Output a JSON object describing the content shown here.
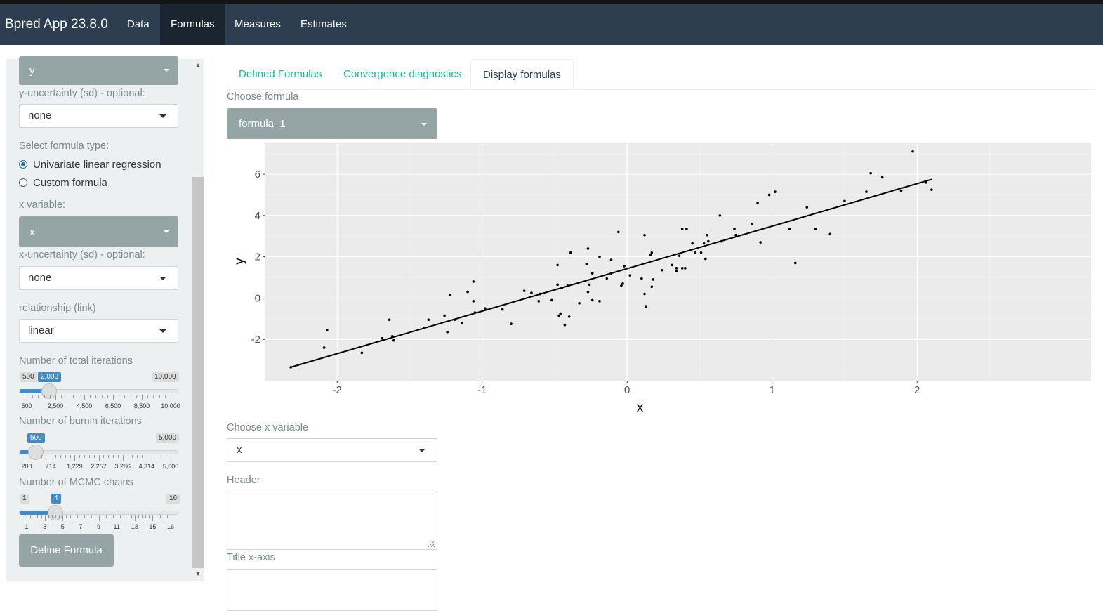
{
  "app": {
    "title": "Bpred App 23.8.0"
  },
  "nav": {
    "items": [
      "Data",
      "Formulas",
      "Measures",
      "Estimates"
    ],
    "active": "Formulas"
  },
  "sidebar": {
    "y_variable": {
      "value": "y"
    },
    "y_uncertainty": {
      "label": "y-uncertainty (sd) - optional:",
      "value": "none"
    },
    "formula_type": {
      "label": "Select formula type:",
      "options": [
        "Univariate linear regression",
        "Custom formula"
      ],
      "selected": "Univariate linear regression"
    },
    "x_variable": {
      "label": "x variable:",
      "value": "x"
    },
    "x_uncertainty": {
      "label": "x-uncertainty (sd) - optional:",
      "value": "none"
    },
    "relationship": {
      "label": "relationship (link)",
      "value": "linear"
    },
    "total_iterations": {
      "label": "Number of total iterations",
      "min_label": "500",
      "max_label": "10,000",
      "value_label": "2,000",
      "min": 500,
      "max": 10000,
      "value": 2000,
      "tick_labels": [
        "500",
        "2,500",
        "4,500",
        "6,500",
        "8,500",
        "10,000"
      ]
    },
    "burnin_iterations": {
      "label": "Number of burnin iterations",
      "max_label": "5,000",
      "value_label": "500",
      "min": 200,
      "max": 5000,
      "value": 500,
      "tick_labels": [
        "200",
        "714",
        "1,229",
        "2,257",
        "3,286",
        "4,314",
        "5,000"
      ]
    },
    "mcmc_chains": {
      "label": "Number of MCMC chains",
      "min_label": "1",
      "max_label": "16",
      "value_label": "4",
      "min": 1,
      "max": 16,
      "value": 4,
      "tick_labels": [
        "1",
        "3",
        "5",
        "7",
        "9",
        "11",
        "13",
        "15",
        "16"
      ]
    },
    "define_button": "Define Formula"
  },
  "tabs": {
    "items": [
      "Defined Formulas",
      "Convergence diagnostics",
      "Display formulas"
    ],
    "active": "Display formulas"
  },
  "main": {
    "choose_formula": {
      "label": "Choose formula",
      "value": "formula_1"
    },
    "choose_x": {
      "label": "Choose x variable",
      "value": "x"
    },
    "header": {
      "label": "Header",
      "value": ""
    },
    "title_x": {
      "label": "Title x-axis",
      "value": ""
    }
  },
  "colors": {
    "nav": "#2c3e50",
    "nav_active": "#1a252f",
    "tab_link": "#18bc9c",
    "slider_blue": "#428bca",
    "select_dark": "#95a5a6",
    "plot_panel": "#ebebeb"
  },
  "chart_data": {
    "type": "scatter",
    "xlabel": "x",
    "ylabel": "y",
    "xlim": [
      -2.5,
      3.2
    ],
    "ylim": [
      -4,
      7.5
    ],
    "xticks": [
      -2,
      -1,
      0,
      1,
      2
    ],
    "yticks": [
      -2,
      0,
      2,
      4,
      6
    ],
    "grid": true,
    "fit_line": {
      "x": [
        -2.32,
        2.1
      ],
      "y": [
        -3.35,
        5.75
      ]
    },
    "points": [
      [
        -2.32,
        -3.35
      ],
      [
        -2.09,
        -2.4
      ],
      [
        -2.07,
        -1.55
      ],
      [
        -1.83,
        -2.65
      ],
      [
        -1.69,
        -1.95
      ],
      [
        -1.64,
        -1.05
      ],
      [
        -1.62,
        -1.85
      ],
      [
        -1.61,
        -2.05
      ],
      [
        -1.4,
        -1.45
      ],
      [
        -1.37,
        -1.05
      ],
      [
        -1.26,
        -0.85
      ],
      [
        -1.24,
        -1.65
      ],
      [
        -1.22,
        0.15
      ],
      [
        -1.19,
        -1.05
      ],
      [
        -1.14,
        -1.2
      ],
      [
        -1.1,
        0.3
      ],
      [
        -1.06,
        -0.15
      ],
      [
        -1.06,
        0.8
      ],
      [
        -1.05,
        -0.7
      ],
      [
        -0.98,
        -0.5
      ],
      [
        -0.86,
        -0.55
      ],
      [
        -0.8,
        -1.25
      ],
      [
        -0.71,
        0.35
      ],
      [
        -0.66,
        0.25
      ],
      [
        -0.61,
        -0.15
      ],
      [
        -0.6,
        0.2
      ],
      [
        -0.52,
        -0.1
      ],
      [
        -0.48,
        1.6
      ],
      [
        -0.48,
        0.65
      ],
      [
        -0.47,
        -0.85
      ],
      [
        -0.46,
        -0.75
      ],
      [
        -0.45,
        0.5
      ],
      [
        -0.43,
        -1.3
      ],
      [
        -0.41,
        0.6
      ],
      [
        -0.4,
        -0.9
      ],
      [
        -0.39,
        2.2
      ],
      [
        -0.33,
        -0.25
      ],
      [
        -0.28,
        1.65
      ],
      [
        -0.27,
        2.4
      ],
      [
        -0.27,
        0.3
      ],
      [
        -0.26,
        0.65
      ],
      [
        -0.24,
        -0.1
      ],
      [
        -0.24,
        1.2
      ],
      [
        -0.19,
        2.0
      ],
      [
        -0.19,
        -0.15
      ],
      [
        -0.14,
        0.95
      ],
      [
        -0.11,
        1.85
      ],
      [
        -0.11,
        1.2
      ],
      [
        -0.06,
        3.2
      ],
      [
        -0.04,
        0.6
      ],
      [
        -0.03,
        0.7
      ],
      [
        -0.02,
        1.55
      ],
      [
        0.02,
        1.1
      ],
      [
        0.1,
        0.95
      ],
      [
        0.12,
        0.2
      ],
      [
        0.12,
        3.05
      ],
      [
        0.13,
        -0.4
      ],
      [
        0.16,
        2.1
      ],
      [
        0.17,
        2.2
      ],
      [
        0.17,
        0.55
      ],
      [
        0.18,
        0.9
      ],
      [
        0.24,
        1.35
      ],
      [
        0.31,
        1.6
      ],
      [
        0.34,
        1.3
      ],
      [
        0.34,
        1.45
      ],
      [
        0.36,
        2.05
      ],
      [
        0.38,
        3.35
      ],
      [
        0.38,
        1.45
      ],
      [
        0.4,
        1.45
      ],
      [
        0.41,
        3.35
      ],
      [
        0.45,
        2.65
      ],
      [
        0.47,
        2.2
      ],
      [
        0.51,
        2.2
      ],
      [
        0.53,
        2.65
      ],
      [
        0.54,
        1.9
      ],
      [
        0.55,
        3.05
      ],
      [
        0.56,
        2.75
      ],
      [
        0.64,
        4.0
      ],
      [
        0.65,
        2.75
      ],
      [
        0.74,
        3.35
      ],
      [
        0.75,
        3.05
      ],
      [
        0.86,
        3.6
      ],
      [
        0.9,
        4.6
      ],
      [
        0.92,
        2.7
      ],
      [
        0.98,
        5.0
      ],
      [
        1.02,
        5.15
      ],
      [
        1.12,
        3.35
      ],
      [
        1.16,
        1.7
      ],
      [
        1.24,
        4.4
      ],
      [
        1.3,
        3.35
      ],
      [
        1.4,
        3.1
      ],
      [
        1.5,
        4.7
      ],
      [
        1.65,
        5.15
      ],
      [
        1.68,
        6.05
      ],
      [
        1.76,
        5.85
      ],
      [
        1.89,
        5.2
      ],
      [
        1.97,
        7.1
      ],
      [
        2.06,
        5.6
      ],
      [
        2.1,
        5.25
      ]
    ]
  }
}
